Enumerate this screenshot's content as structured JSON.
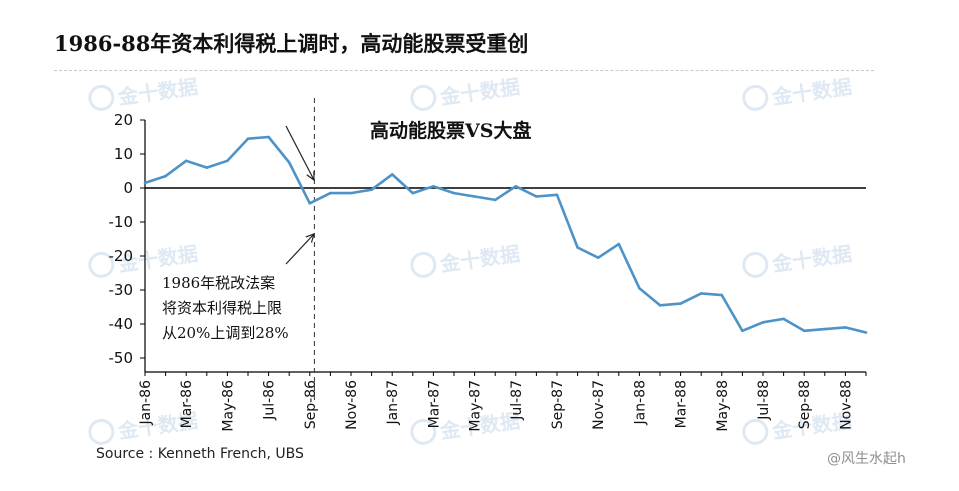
{
  "title": "1986-88年资本利得税上调时，高动能股票受重创",
  "source": "Source : Kenneth French, UBS",
  "weibo_watermark": "@风生水起h",
  "watermark_text": "金十数据",
  "colors": {
    "line": "#4d93c8",
    "axis": "#000000",
    "watermark": "#dfe9f3"
  },
  "chart_data": {
    "type": "line",
    "title": "高动能股票VS大盘",
    "xlabel": "",
    "ylabel": "",
    "ylim": [
      -50,
      20
    ],
    "yticks": [
      20,
      10,
      0,
      -10,
      -20,
      -30,
      -40,
      -50
    ],
    "x": [
      "Jan-86",
      "Feb-86",
      "Mar-86",
      "Apr-86",
      "May-86",
      "Jun-86",
      "Jul-86",
      "Aug-86",
      "Sep-86",
      "Oct-86",
      "Nov-86",
      "Dec-86",
      "Jan-87",
      "Feb-87",
      "Mar-87",
      "Apr-87",
      "May-87",
      "Jun-87",
      "Jul-87",
      "Aug-87",
      "Sep-87",
      "Oct-87",
      "Nov-87",
      "Dec-87",
      "Jan-88",
      "Feb-88",
      "Mar-88",
      "Apr-88",
      "May-88",
      "Jun-88",
      "Jul-88",
      "Aug-88",
      "Sep-88",
      "Oct-88",
      "Nov-88",
      "Dec-88"
    ],
    "x_tick_labels": [
      "Jan-86",
      "Mar-86",
      "May-86",
      "Jul-86",
      "Sep-86",
      "Nov-86",
      "Jan-87",
      "Mar-87",
      "May-87",
      "Jul-87",
      "Sep-87",
      "Nov-87",
      "Jan-88",
      "Mar-88",
      "May-88",
      "Jul-88",
      "Sep-88",
      "Nov-88"
    ],
    "series": [
      {
        "values": [
          1.5,
          3.5,
          8,
          6,
          8,
          14.5,
          15,
          7.5,
          -4.5,
          -1.5,
          -1.5,
          -0.5,
          4,
          -1.5,
          0.5,
          -1.5,
          -2.5,
          -3.5,
          0.5,
          -2.5,
          -2,
          -17.5,
          -20.5,
          -16.5,
          -29.5,
          -34.5,
          -34,
          -31,
          -31.5,
          -42,
          -39.5,
          -38.5,
          -42,
          -41.5,
          -41,
          -42.5
        ]
      }
    ],
    "reference_line_at": "Oct-86",
    "annotation": [
      "1986年税改法案",
      "将资本利得税上限",
      "从20%上调到28%"
    ],
    "grid": false
  }
}
